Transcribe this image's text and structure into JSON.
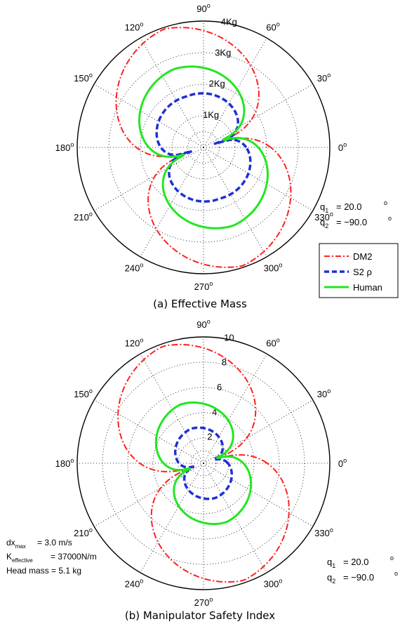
{
  "colors": {
    "dm2": "#ff2020",
    "s2": "#1f2fd6",
    "human": "#22e622",
    "axis": "#000000",
    "grid": "#000000"
  },
  "chart_data": [
    {
      "type": "polar-line",
      "caption": "(a) Effective Mass",
      "angle_ticks_deg": [
        0,
        30,
        60,
        90,
        120,
        150,
        180,
        210,
        240,
        270,
        300,
        330
      ],
      "angle_labels": [
        "0",
        "30",
        "60",
        "90",
        "120",
        "150",
        "180",
        "210",
        "240",
        "270",
        "300",
        "330"
      ],
      "degree_symbol": "o",
      "r_max": 4,
      "r_ticks": [
        1,
        2,
        3,
        4
      ],
      "r_tick_labels": [
        "1Kg",
        "2Kg",
        "3Kg",
        "4Kg"
      ],
      "grid": true,
      "legend": {
        "placement": "right",
        "entries": [
          {
            "label": "DM2",
            "series": "dm2"
          },
          {
            "label": "S2 ρ",
            "series": "s2"
          },
          {
            "label": "Human",
            "series": "human"
          }
        ]
      },
      "annotations_right": {
        "q1": "= 20.0",
        "q2": "= −90.0",
        "unit": "o"
      },
      "series": [
        {
          "key": "dm2",
          "name": "DM2",
          "style": "dashdot",
          "r_major": 3.95,
          "r_minor": 0.07,
          "axis_deg": 108.5,
          "lobe_width": 0.22
        },
        {
          "key": "s2",
          "name": "S2 ρ",
          "style": "dashed",
          "r_major": 1.7,
          "r_minor": 0.38,
          "axis_deg": 108.0,
          "lobe_width": 0.34
        },
        {
          "key": "human",
          "name": "Human",
          "style": "solid",
          "r_major": 2.65,
          "r_minor": 0.22,
          "axis_deg": 111.0,
          "lobe_width": 0.26
        }
      ]
    },
    {
      "type": "polar-line",
      "caption": "(b) Manipulator Safety Index",
      "angle_ticks_deg": [
        0,
        30,
        60,
        90,
        120,
        150,
        180,
        210,
        240,
        270,
        300,
        330
      ],
      "angle_labels": [
        "0",
        "30",
        "60",
        "90",
        "120",
        "150",
        "180",
        "210",
        "240",
        "270",
        "300",
        "330"
      ],
      "degree_symbol": "o",
      "r_max": 10,
      "r_ticks": [
        2,
        4,
        6,
        8,
        10
      ],
      "r_tick_labels": [
        "2",
        "4",
        "6",
        "8",
        "10"
      ],
      "grid": true,
      "annotations_right": {
        "q1": "= 20.0",
        "q2": "= −90.0",
        "unit": "o"
      },
      "annotations_left": {
        "dx_base": "dx",
        "dx_sub": "max",
        "dx_value": "= 3.0 m/s",
        "k_base": "K",
        "k_sub": "effective",
        "k_value": "= 37000N/m",
        "head": "Head mass = 5.1 kg"
      },
      "series": [
        {
          "key": "dm2",
          "name": "DM2",
          "style": "dashdot",
          "r_major": 9.8,
          "r_minor": 0.15,
          "axis_deg": 109.0,
          "lobe_width": 0.18
        },
        {
          "key": "s2",
          "name": "S2 ρ",
          "style": "dashed",
          "r_major": 2.9,
          "r_minor": 0.25,
          "axis_deg": 109.0,
          "lobe_width": 0.32
        },
        {
          "key": "human",
          "name": "Human",
          "style": "solid",
          "r_major": 5.0,
          "r_minor": 0.3,
          "axis_deg": 111.0,
          "lobe_width": 0.26
        }
      ]
    }
  ]
}
